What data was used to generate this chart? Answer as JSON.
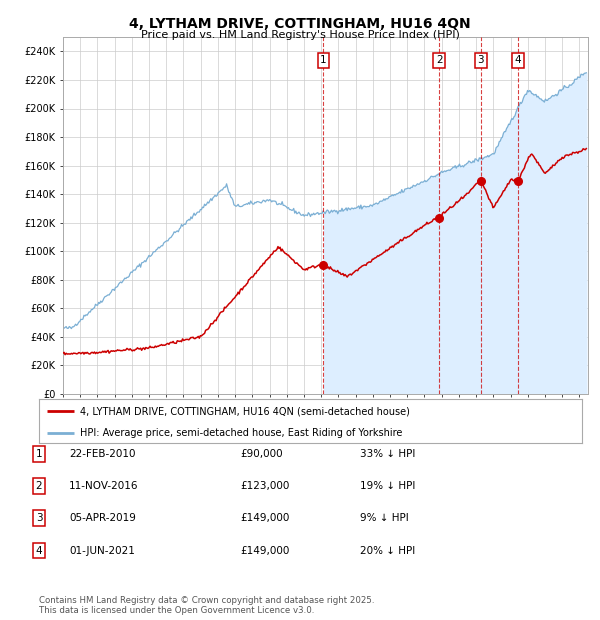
{
  "title": "4, LYTHAM DRIVE, COTTINGHAM, HU16 4QN",
  "subtitle": "Price paid vs. HM Land Registry's House Price Index (HPI)",
  "xlim": [
    1995.0,
    2025.5
  ],
  "ylim": [
    0,
    250000
  ],
  "yticks": [
    0,
    20000,
    40000,
    60000,
    80000,
    100000,
    120000,
    140000,
    160000,
    180000,
    200000,
    220000,
    240000
  ],
  "ytick_labels": [
    "£0",
    "£20K",
    "£40K",
    "£60K",
    "£80K",
    "£100K",
    "£120K",
    "£140K",
    "£160K",
    "£180K",
    "£200K",
    "£220K",
    "£240K"
  ],
  "hpi_color": "#7bafd4",
  "price_color": "#cc0000",
  "background_color": "#ffffff",
  "grid_color": "#cccccc",
  "sale_dates": [
    2010.13,
    2016.86,
    2019.27,
    2021.42
  ],
  "sale_prices": [
    90000,
    123000,
    149000,
    149000
  ],
  "sale_labels": [
    "1",
    "2",
    "3",
    "4"
  ],
  "legend_price_label": "4, LYTHAM DRIVE, COTTINGHAM, HU16 4QN (semi-detached house)",
  "legend_hpi_label": "HPI: Average price, semi-detached house, East Riding of Yorkshire",
  "table_rows": [
    [
      "1",
      "22-FEB-2010",
      "£90,000",
      "33% ↓ HPI"
    ],
    [
      "2",
      "11-NOV-2016",
      "£123,000",
      "19% ↓ HPI"
    ],
    [
      "3",
      "05-APR-2019",
      "£149,000",
      "9% ↓ HPI"
    ],
    [
      "4",
      "01-JUN-2021",
      "£149,000",
      "20% ↓ HPI"
    ]
  ],
  "footnote": "Contains HM Land Registry data © Crown copyright and database right 2025.\nThis data is licensed under the Open Government Licence v3.0.",
  "hpi_fill_start_year": 2010.13,
  "hpi_fill_color": "#ddeeff"
}
